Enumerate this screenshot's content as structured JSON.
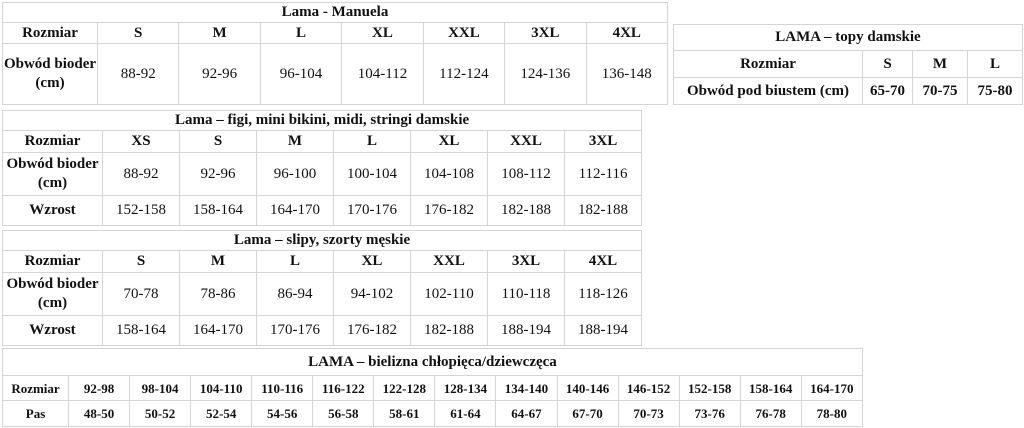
{
  "tables": [
    {
      "id": "t1",
      "name": "lama-manuela-table",
      "title": "Lama - Manuela",
      "first_w": 95,
      "heights": [
        20,
        21,
        61
      ],
      "rows": [
        {
          "label": "Rozmiar",
          "bold": true,
          "cells": [
            "S",
            "M",
            "L",
            "XL",
            "XXL",
            "3XL",
            "4XL"
          ]
        },
        {
          "label": "Obwód bioder (cm)",
          "bold": false,
          "cells": [
            "88-92",
            "92-96",
            "96-104",
            "104-112",
            "112-124",
            "124-136",
            "136-148"
          ]
        }
      ]
    },
    {
      "id": "t2",
      "name": "lama-topy-damskie-table",
      "title": "LAMA – topy damskie",
      "first_w": 189,
      "heights": [
        26,
        27,
        27
      ],
      "widths": [
        50,
        55,
        55
      ],
      "rows": [
        {
          "label": "Rozmiar",
          "bold": true,
          "cells": [
            "S",
            "M",
            "L"
          ]
        },
        {
          "label": "Obwód pod biustem (cm)",
          "bold": true,
          "cells": [
            "65-70",
            "70-75",
            "75-80"
          ]
        }
      ]
    },
    {
      "id": "t3",
      "name": "lama-figi-damskie-table",
      "title": "Lama – figi, mini bikini, midi, stringi damskie",
      "first_w": 100,
      "heights": [
        18,
        22,
        43,
        30
      ],
      "rows": [
        {
          "label": "Rozmiar",
          "bold": true,
          "cells": [
            "XS",
            "S",
            "M",
            "L",
            "XL",
            "XXL",
            "3XL"
          ]
        },
        {
          "label": "Obwód bioder (cm)",
          "bold": false,
          "cells": [
            "88-92",
            "92-96",
            "96-100",
            "100-104",
            "104-108",
            "108-112",
            "112-116"
          ]
        },
        {
          "label": "Wzrost",
          "bold": false,
          "cells": [
            "152-158",
            "158-164",
            "164-170",
            "170-176",
            "176-182",
            "182-188",
            "182-188"
          ]
        }
      ]
    },
    {
      "id": "t4",
      "name": "lama-slipy-meskie-table",
      "title": "Lama – slipy, szorty męskie",
      "first_w": 100,
      "heights": [
        18,
        22,
        43,
        30
      ],
      "rows": [
        {
          "label": "Rozmiar",
          "bold": true,
          "cells": [
            "S",
            "M",
            "L",
            "XL",
            "XXL",
            "3XL",
            "4XL"
          ]
        },
        {
          "label": "Obwód bioder (cm)",
          "bold": false,
          "cells": [
            "70-78",
            "78-86",
            "86-94",
            "94-102",
            "102-110",
            "110-118",
            "118-126"
          ]
        },
        {
          "label": "Wzrost",
          "bold": false,
          "cells": [
            "158-164",
            "164-170",
            "170-176",
            "176-182",
            "182-188",
            "188-194",
            "188-194"
          ]
        }
      ]
    },
    {
      "id": "t5",
      "name": "lama-bielizna-dziecieca-table",
      "title": "LAMA – bielizna chłopięca/dziewczęca",
      "first_w": 66,
      "heights": [
        27,
        25,
        26
      ],
      "rows": [
        {
          "label": "Rozmiar",
          "bold": true,
          "cells": [
            "92-98",
            "98-104",
            "104-110",
            "110-116",
            "116-122",
            "122-128",
            "128-134",
            "134-140",
            "140-146",
            "146-152",
            "152-158",
            "158-164",
            "164-170"
          ]
        },
        {
          "label": "Pas",
          "bold": true,
          "cells": [
            "48-50",
            "50-52",
            "52-54",
            "54-56",
            "56-58",
            "58-61",
            "61-64",
            "64-67",
            "67-70",
            "70-73",
            "73-76",
            "76-78",
            "78-80"
          ]
        }
      ]
    }
  ]
}
